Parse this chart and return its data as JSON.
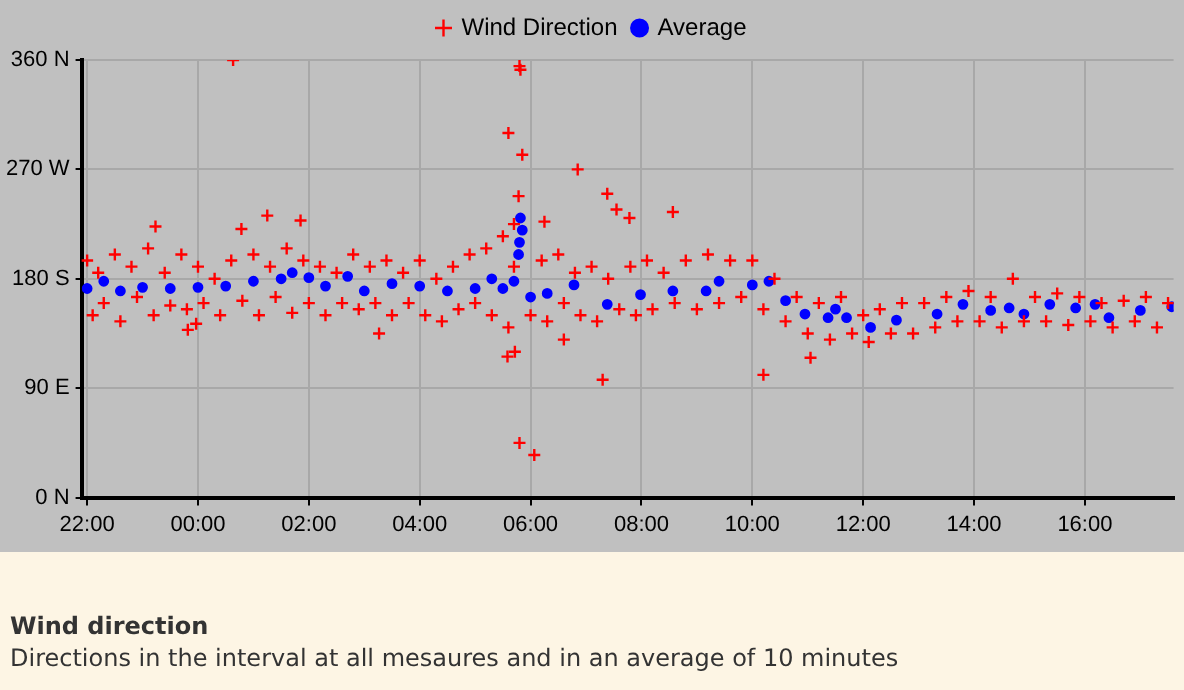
{
  "chart_data": {
    "type": "scatter",
    "title": "Wind direction",
    "subtitle": "Directions in the interval at all mesaures and in an average of 10 minutes",
    "xlim": [
      "2000-01-01T21:54",
      "2000-01-02T17:36"
    ],
    "xticks": [
      {
        "value": "2000-01-01T22:00",
        "label": "22:00"
      },
      {
        "value": "2000-01-02T00:00",
        "label": "00:00"
      },
      {
        "value": "2000-01-02T02:00",
        "label": "02:00"
      },
      {
        "value": "2000-01-02T04:00",
        "label": "04:00"
      },
      {
        "value": "2000-01-02T06:00",
        "label": "06:00"
      },
      {
        "value": "2000-01-02T08:00",
        "label": "08:00"
      },
      {
        "value": "2000-01-02T10:00",
        "label": "10:00"
      },
      {
        "value": "2000-01-02T12:00",
        "label": "12:00"
      },
      {
        "value": "2000-01-02T14:00",
        "label": "14:00"
      },
      {
        "value": "2000-01-02T16:00",
        "label": "16:00"
      }
    ],
    "ylim": [
      0,
      360
    ],
    "yticks": [
      {
        "value": 0,
        "label": "0 N"
      },
      {
        "value": 90,
        "label": "90 E"
      },
      {
        "value": 180,
        "label": "180 S"
      },
      {
        "value": 270,
        "label": "270 W"
      },
      {
        "value": 360,
        "label": "360 N"
      }
    ],
    "grid": true,
    "legend": "top",
    "series": [
      {
        "name": "Wind Direction",
        "color": "#ff0000",
        "marker": "cross",
        "x": [
          "2000-01-01T22:00",
          "2000-01-01T22:06",
          "2000-01-01T22:12",
          "2000-01-01T22:18",
          "2000-01-01T22:30",
          "2000-01-01T22:36",
          "2000-01-01T22:48",
          "2000-01-01T22:54",
          "2000-01-01T23:06",
          "2000-01-01T23:12",
          "2000-01-01T23:24",
          "2000-01-01T23:30",
          "2000-01-01T23:42",
          "2000-01-01T23:48",
          "2000-01-02T00:00",
          "2000-01-02T00:06",
          "2000-01-02T00:18",
          "2000-01-02T00:24",
          "2000-01-02T00:36",
          "2000-01-02T00:48",
          "2000-01-02T01:00",
          "2000-01-02T01:06",
          "2000-01-02T01:18",
          "2000-01-02T01:24",
          "2000-01-02T01:36",
          "2000-01-02T01:42",
          "2000-01-02T01:54",
          "2000-01-02T02:00",
          "2000-01-02T02:12",
          "2000-01-02T02:18",
          "2000-01-02T02:30",
          "2000-01-02T02:36",
          "2000-01-02T02:48",
          "2000-01-02T02:54",
          "2000-01-02T03:06",
          "2000-01-02T03:12",
          "2000-01-02T03:24",
          "2000-01-02T03:30",
          "2000-01-02T03:42",
          "2000-01-02T03:48",
          "2000-01-02T04:00",
          "2000-01-02T04:06",
          "2000-01-02T04:18",
          "2000-01-02T04:24",
          "2000-01-02T04:36",
          "2000-01-02T04:42",
          "2000-01-02T04:54",
          "2000-01-02T05:00",
          "2000-01-02T05:12",
          "2000-01-02T05:18",
          "2000-01-02T05:30",
          "2000-01-02T05:36",
          "2000-01-02T05:42",
          "2000-01-02T06:00",
          "2000-01-02T06:12",
          "2000-01-02T06:18",
          "2000-01-02T06:30",
          "2000-01-02T06:36",
          "2000-01-02T06:48",
          "2000-01-02T06:54",
          "2000-01-02T07:06",
          "2000-01-02T07:12",
          "2000-01-02T07:24",
          "2000-01-02T07:36",
          "2000-01-02T07:48",
          "2000-01-02T07:54",
          "2000-01-02T08:06",
          "2000-01-02T08:12",
          "2000-01-02T08:24",
          "2000-01-02T08:36",
          "2000-01-02T08:48",
          "2000-01-02T09:00",
          "2000-01-02T09:12",
          "2000-01-02T09:24",
          "2000-01-02T09:36",
          "2000-01-02T09:48",
          "2000-01-02T10:00",
          "2000-01-02T10:12",
          "2000-01-02T10:24",
          "2000-01-02T10:36",
          "2000-01-02T10:48",
          "2000-01-02T11:00",
          "2000-01-02T11:12",
          "2000-01-02T11:24",
          "2000-01-02T11:36",
          "2000-01-02T11:48",
          "2000-01-02T12:00",
          "2000-01-02T12:06",
          "2000-01-02T12:18",
          "2000-01-02T12:30",
          "2000-01-02T12:42",
          "2000-01-02T12:54",
          "2000-01-02T13:06",
          "2000-01-02T13:18",
          "2000-01-02T13:30",
          "2000-01-02T13:42",
          "2000-01-02T13:54",
          "2000-01-02T14:06",
          "2000-01-02T14:18",
          "2000-01-02T14:30",
          "2000-01-02T14:42",
          "2000-01-02T14:54",
          "2000-01-02T15:06",
          "2000-01-02T15:18",
          "2000-01-02T15:30",
          "2000-01-02T15:42",
          "2000-01-02T15:54",
          "2000-01-02T16:06",
          "2000-01-02T16:18",
          "2000-01-02T16:30",
          "2000-01-02T16:42",
          "2000-01-02T16:54",
          "2000-01-02T17:06",
          "2000-01-02T17:18",
          "2000-01-02T17:30",
          "2000-01-02T00:38",
          "2000-01-02T05:48",
          "2000-01-02T05:49",
          "2000-01-02T05:36",
          "2000-01-02T05:51",
          "2000-01-02T05:47",
          "2000-01-02T05:42",
          "2000-01-02T05:43",
          "2000-01-02T05:48",
          "2000-01-02T06:04",
          "2000-01-02T06:51",
          "2000-01-02T07:23",
          "2000-01-02T07:33",
          "2000-01-02T07:47",
          "2000-01-02T08:34",
          "2000-01-02T07:18",
          "2000-01-02T10:12",
          "2000-01-02T11:03",
          "2000-01-01T23:49",
          "2000-01-01T23:58",
          "2000-01-02T03:16",
          "2000-01-01T23:14",
          "2000-01-02T01:15",
          "2000-01-02T01:51",
          "2000-01-02T00:47",
          "2000-01-02T05:35",
          "2000-01-02T06:15",
          "2000-01-02T06:36"
        ],
        "values": [
          195,
          150,
          185,
          160,
          200,
          145,
          190,
          165,
          205,
          150,
          185,
          158,
          200,
          155,
          190,
          160,
          180,
          150,
          195,
          162,
          200,
          150,
          190,
          165,
          205,
          152,
          195,
          160,
          190,
          150,
          185,
          160,
          200,
          155,
          190,
          160,
          195,
          150,
          185,
          160,
          195,
          150,
          180,
          145,
          190,
          155,
          200,
          160,
          205,
          150,
          215,
          140,
          190,
          150,
          195,
          145,
          200,
          160,
          185,
          150,
          190,
          145,
          180,
          155,
          190,
          150,
          195,
          155,
          185,
          160,
          195,
          155,
          200,
          160,
          195,
          165,
          195,
          155,
          180,
          145,
          165,
          135,
          160,
          130,
          165,
          135,
          150,
          128,
          155,
          135,
          160,
          135,
          160,
          140,
          165,
          145,
          170,
          145,
          165,
          140,
          180,
          145,
          165,
          145,
          168,
          142,
          165,
          145,
          160,
          140,
          162,
          145,
          165,
          140,
          160,
          360,
          355,
          352,
          300,
          282,
          248,
          225,
          120,
          45,
          35,
          270,
          250,
          237,
          230,
          235,
          97,
          101,
          115,
          138,
          143,
          135,
          223,
          232,
          228,
          221,
          116,
          227,
          130
        ]
      },
      {
        "name": "Average",
        "color": "#0000ff",
        "marker": "circle",
        "x": [
          "2000-01-01T22:00",
          "2000-01-01T22:18",
          "2000-01-01T22:36",
          "2000-01-01T23:00",
          "2000-01-01T23:30",
          "2000-01-02T00:00",
          "2000-01-02T00:30",
          "2000-01-02T01:00",
          "2000-01-02T01:30",
          "2000-01-02T01:42",
          "2000-01-02T02:00",
          "2000-01-02T02:18",
          "2000-01-02T02:42",
          "2000-01-02T03:00",
          "2000-01-02T03:30",
          "2000-01-02T04:00",
          "2000-01-02T04:30",
          "2000-01-02T05:00",
          "2000-01-02T05:18",
          "2000-01-02T05:30",
          "2000-01-02T05:42",
          "2000-01-02T05:47",
          "2000-01-02T05:48",
          "2000-01-02T05:49",
          "2000-01-02T05:51",
          "2000-01-02T06:00",
          "2000-01-02T06:18",
          "2000-01-02T06:47",
          "2000-01-02T07:23",
          "2000-01-02T07:59",
          "2000-01-02T08:34",
          "2000-01-02T09:10",
          "2000-01-02T09:24",
          "2000-01-02T10:00",
          "2000-01-02T10:18",
          "2000-01-02T10:36",
          "2000-01-02T10:57",
          "2000-01-02T11:22",
          "2000-01-02T11:30",
          "2000-01-02T11:42",
          "2000-01-02T12:08",
          "2000-01-02T12:36",
          "2000-01-02T13:20",
          "2000-01-02T13:48",
          "2000-01-02T14:18",
          "2000-01-02T14:38",
          "2000-01-02T14:54",
          "2000-01-02T15:22",
          "2000-01-02T15:50",
          "2000-01-02T16:11",
          "2000-01-02T16:26",
          "2000-01-02T17:00",
          "2000-01-02T17:34"
        ],
        "values": [
          172,
          178,
          170,
          173,
          172,
          173,
          174,
          178,
          180,
          185,
          181,
          174,
          182,
          170,
          176,
          174,
          170,
          172,
          180,
          172,
          178,
          200,
          210,
          230,
          220,
          165,
          168,
          175,
          159,
          167,
          170,
          170,
          178,
          175,
          178,
          162,
          151,
          148,
          155,
          148,
          140,
          146,
          151,
          159,
          154,
          156,
          151,
          159,
          156,
          159,
          148,
          154,
          157
        ]
      }
    ]
  }
}
